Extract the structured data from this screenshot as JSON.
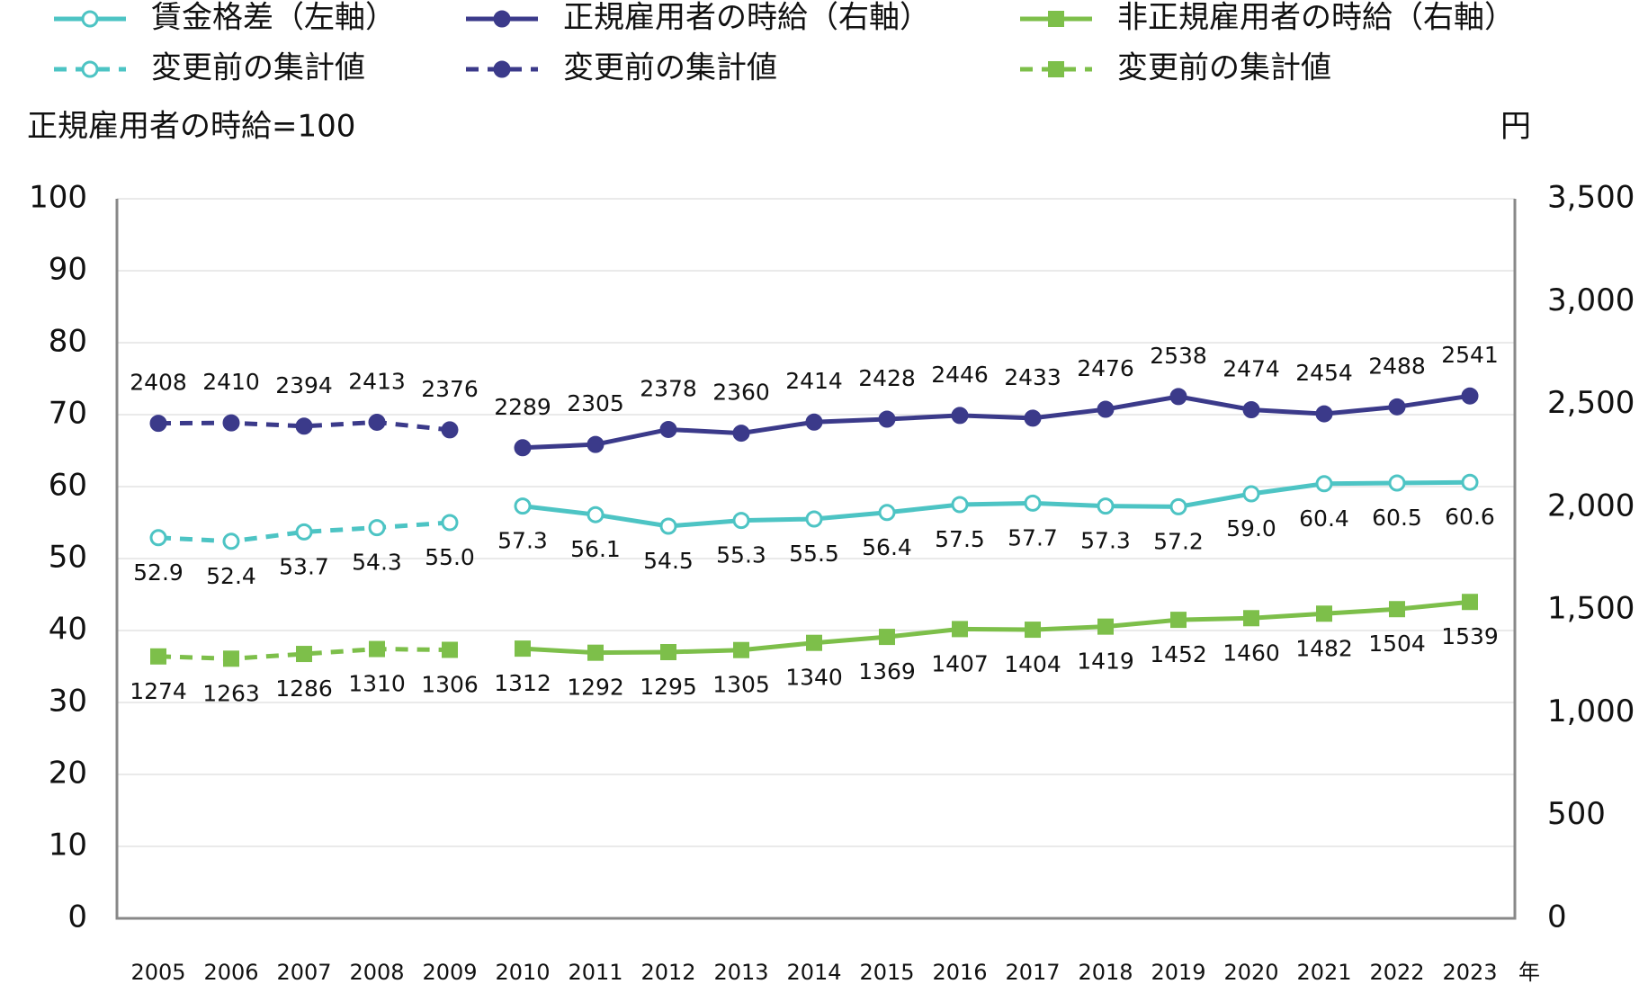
{
  "chart_data": {
    "type": "line",
    "y_label": "正規雇用者の時給=100",
    "y2_label": "円",
    "x_label": "年",
    "categories": [
      "2005",
      "2006",
      "2007",
      "2008",
      "2009",
      "2010",
      "2011",
      "2012",
      "2013",
      "2014",
      "2015",
      "2016",
      "2017",
      "2018",
      "2019",
      "2020",
      "2021",
      "2022",
      "2023"
    ],
    "ylim": [
      0,
      100
    ],
    "yticks": [
      0,
      10,
      20,
      30,
      40,
      50,
      60,
      70,
      80,
      90,
      100
    ],
    "y2lim": [
      0,
      3500
    ],
    "y2ticks": [
      0,
      500,
      {
        "value": 1000,
        "label": "1,000"
      },
      {
        "value": 1500,
        "label": "1,500"
      },
      {
        "value": 2000,
        "label": "2,000"
      },
      {
        "value": 2500,
        "label": "2,500"
      },
      {
        "value": 3000,
        "label": "3,000"
      },
      {
        "value": 3500,
        "label": "3,500"
      }
    ],
    "grid": true,
    "series": [
      {
        "name": "賃金格差（左軸）",
        "color": "#4dc4c4",
        "marker": "circle-open",
        "dashed": false,
        "label_pos": "below",
        "values": [
          null,
          null,
          null,
          null,
          null,
          57.3,
          56.1,
          54.5,
          55.3,
          55.5,
          56.4,
          57.5,
          57.7,
          57.3,
          57.2,
          59.0,
          60.4,
          60.5,
          60.6
        ],
        "value_labels": [
          null,
          null,
          null,
          null,
          null,
          "57.3",
          "56.1",
          "54.5",
          "55.3",
          "55.5",
          "56.4",
          "57.5",
          "57.7",
          "57.3",
          "57.2",
          "59.0",
          "60.4",
          "60.5",
          "60.6"
        ]
      },
      {
        "name": "正規雇用者の時給（右軸）",
        "color": "#3b3a8a",
        "marker": "circle",
        "dashed": false,
        "axis": "y2",
        "label_pos": "above",
        "values": [
          null,
          null,
          null,
          null,
          null,
          2289,
          2305,
          2378,
          2360,
          2414,
          2428,
          2446,
          2433,
          2476,
          2538,
          2474,
          2454,
          2488,
          2541
        ]
      },
      {
        "name": "非正規雇用者の時給（右軸）",
        "color": "#7dbf4a",
        "marker": "square",
        "dashed": false,
        "axis": "y2",
        "label_pos": "below",
        "values": [
          null,
          null,
          null,
          null,
          null,
          1312,
          1292,
          1295,
          1305,
          1340,
          1369,
          1407,
          1404,
          1419,
          1452,
          1460,
          1482,
          1504,
          1539
        ]
      },
      {
        "name": "変更前の集計値",
        "color": "#4dc4c4",
        "marker": "circle-open",
        "dashed": true,
        "label_pos": "below",
        "values": [
          52.9,
          52.4,
          53.7,
          54.3,
          55.0,
          null,
          null,
          null,
          null,
          null,
          null,
          null,
          null,
          null,
          null,
          null,
          null,
          null,
          null
        ],
        "value_labels": [
          "52.9",
          "52.4",
          "53.7",
          "54.3",
          "55.0",
          null,
          null,
          null,
          null,
          null,
          null,
          null,
          null,
          null,
          null,
          null,
          null,
          null,
          null
        ]
      },
      {
        "name": "変更前の集計値",
        "color": "#3b3a8a",
        "marker": "circle",
        "dashed": true,
        "axis": "y2",
        "label_pos": "above",
        "values": [
          2408,
          2410,
          2394,
          2413,
          2376,
          null,
          null,
          null,
          null,
          null,
          null,
          null,
          null,
          null,
          null,
          null,
          null,
          null,
          null
        ]
      },
      {
        "name": "変更前の集計値",
        "color": "#7dbf4a",
        "marker": "square",
        "dashed": true,
        "axis": "y2",
        "label_pos": "below",
        "values": [
          1274,
          1263,
          1286,
          1310,
          1306,
          null,
          null,
          null,
          null,
          null,
          null,
          null,
          null,
          null,
          null,
          null,
          null,
          null,
          null
        ]
      }
    ]
  }
}
